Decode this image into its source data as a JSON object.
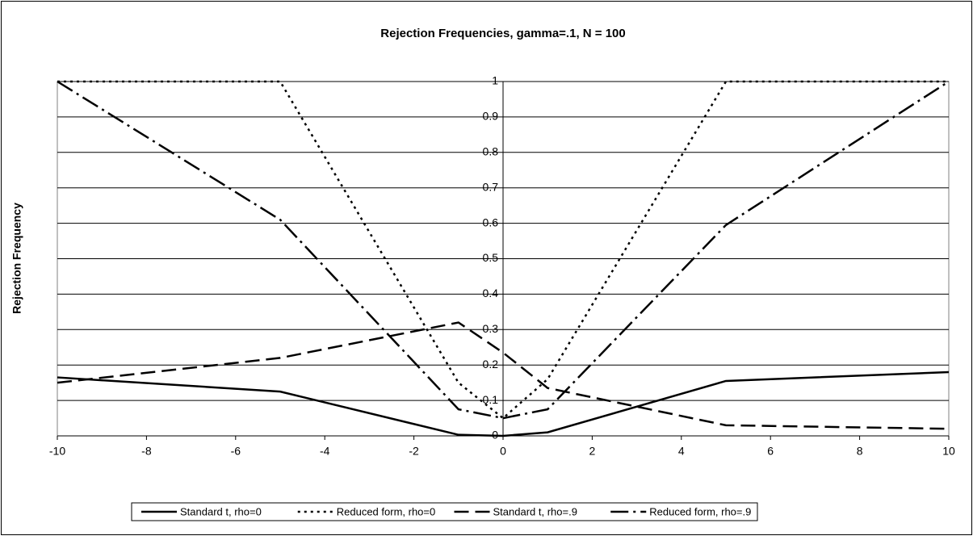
{
  "chart_data": {
    "type": "line",
    "title": "Rejection Frequencies, gamma=.1, N = 100",
    "y_label": "Rejection Frequency",
    "x": [
      -10,
      -5,
      -1,
      0,
      1,
      5,
      10
    ],
    "series": [
      {
        "name": "Standard t, rho=0",
        "color": "#000000",
        "dash": "none",
        "values": [
          0.165,
          0.125,
          0.003,
          0,
          0.01,
          0.155,
          0.18
        ]
      },
      {
        "name": "Reduced form, rho=0",
        "color": "#000000",
        "dash": "3 5",
        "values": [
          1,
          1,
          0.15,
          0.05,
          0.16,
          1,
          1
        ]
      },
      {
        "name": "Standard t, rho=.9",
        "color": "#000000",
        "dash": "18 8",
        "values": [
          0.15,
          0.22,
          0.32,
          0.235,
          0.135,
          0.03,
          0.02
        ]
      },
      {
        "name": "Reduced form, rho=.9",
        "color": "#000000",
        "dash": "22 6 3 6",
        "values": [
          1,
          0.61,
          0.075,
          0.05,
          0.075,
          0.595,
          1
        ]
      }
    ],
    "xlim": [
      -10,
      10
    ],
    "xticks": [
      -10,
      -8,
      -6,
      -4,
      -2,
      0,
      2,
      4,
      6,
      8,
      10
    ],
    "ylim": [
      0,
      1
    ],
    "yticks": [
      0,
      0.1,
      0.2,
      0.3,
      0.4,
      0.5,
      0.6,
      0.7,
      0.8,
      0.9,
      1
    ],
    "grid": true,
    "legend": "bottom"
  }
}
